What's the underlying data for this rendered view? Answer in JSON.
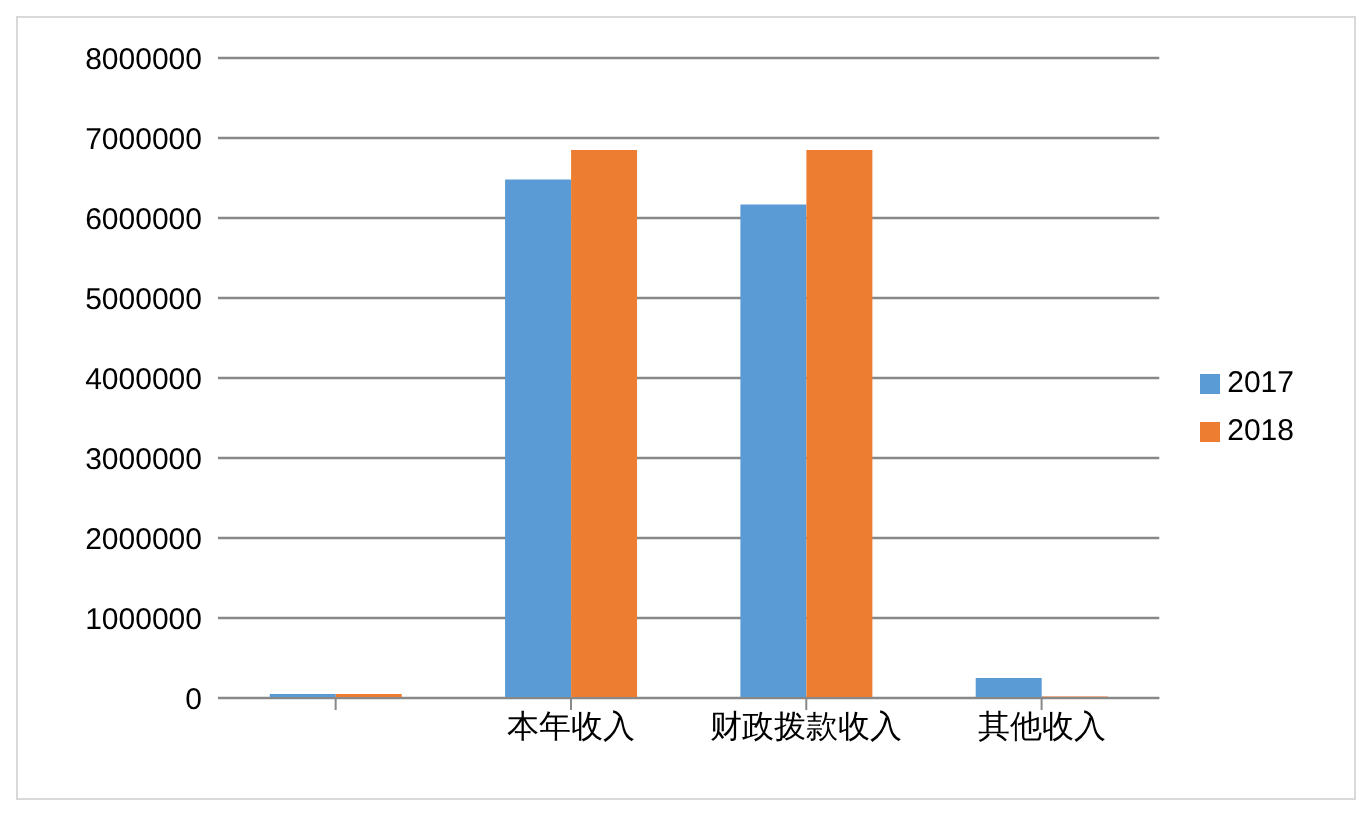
{
  "chart_data": {
    "type": "bar",
    "categories": [
      null,
      "本年收入",
      "财政拨款收入",
      "其他收入"
    ],
    "series": [
      {
        "name": "2017",
        "color": "#5b9bd5",
        "values": [
          50000,
          6480000,
          6170000,
          250000
        ]
      },
      {
        "name": "2018",
        "color": "#ed7d31",
        "values": [
          50000,
          6850000,
          6850000,
          20000
        ]
      }
    ],
    "ylim": [
      0,
      8000000
    ],
    "yticks": [
      0,
      1000000,
      2000000,
      3000000,
      4000000,
      5000000,
      6000000,
      7000000,
      8000000
    ],
    "grid": "y",
    "legend": "right"
  }
}
